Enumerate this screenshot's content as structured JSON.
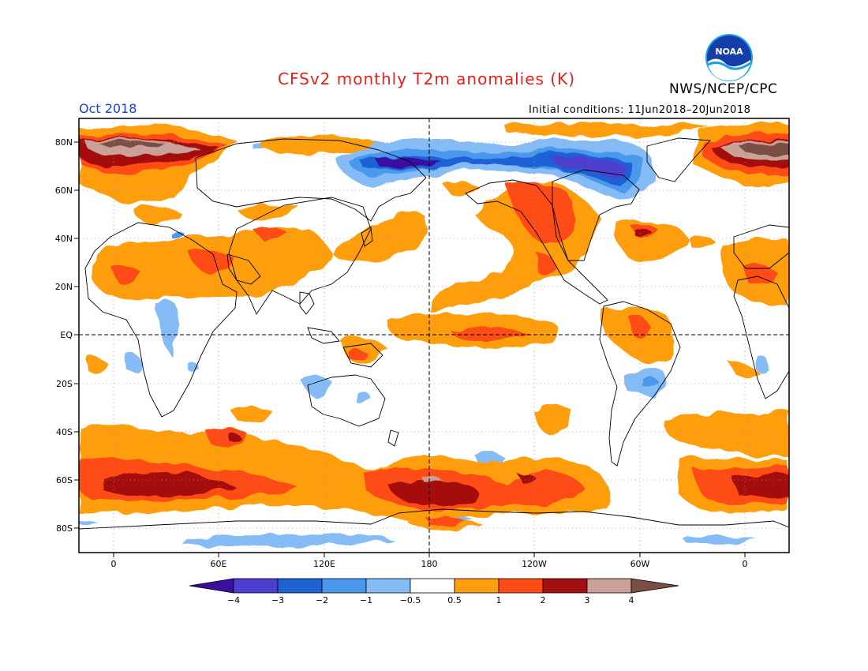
{
  "header": {
    "title": "CFSv2 monthly T2m anomalies (K)",
    "period": "Oct 2018",
    "initial_conditions": "Initial conditions: 11Jun2018–20Jun2018",
    "agency": "NWS/NCEP/CPC",
    "logo_text": "NOAA"
  },
  "map": {
    "lat_labels": [
      "80N",
      "60N",
      "40N",
      "20N",
      "EQ",
      "20S",
      "40S",
      "60S",
      "80S"
    ],
    "lon_labels": [
      "0",
      "60E",
      "120E",
      "180",
      "120W",
      "60W",
      "0"
    ]
  },
  "colorbar": {
    "labels": [
      "−4",
      "−3",
      "−2",
      "−1",
      "−0.5",
      "0.5",
      "1",
      "2",
      "3",
      "4"
    ],
    "colors": {
      "lt_neg4": "#3b0ea0",
      "neg4_neg3": "#4d3fcf",
      "neg3_neg2": "#1f62d6",
      "neg2_neg1": "#4a98ec",
      "neg1_neg05": "#86bcf5",
      "neutral": "#ffffff",
      "p05_1": "#ff9e0f",
      "p1_2": "#ff4b14",
      "p2_3": "#a50f0f",
      "p3_4": "#c9a196",
      "gt_4": "#7a4d45"
    }
  }
}
